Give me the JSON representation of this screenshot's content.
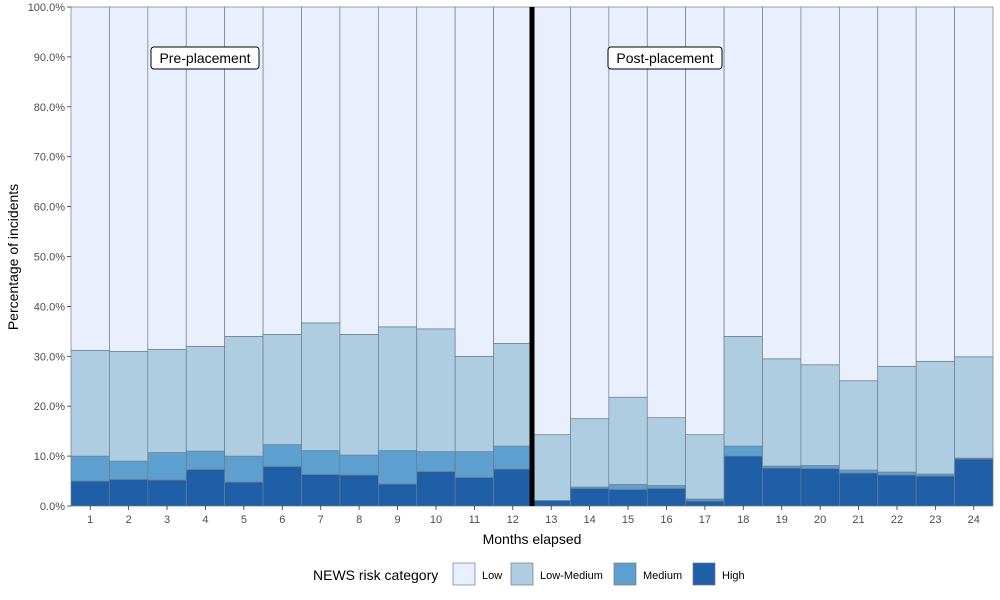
{
  "chart_data": {
    "type": "bar",
    "stacked": true,
    "percent": true,
    "xlabel": "Months elapsed",
    "ylabel": "Percentage of incidents",
    "ylim": [
      0,
      100
    ],
    "y_ticks": [
      "0.0%",
      "10.0%",
      "20.0%",
      "30.0%",
      "40.0%",
      "50.0%",
      "60.0%",
      "70.0%",
      "80.0%",
      "90.0%",
      "100.0%"
    ],
    "categories": [
      "1",
      "2",
      "3",
      "4",
      "5",
      "6",
      "7",
      "8",
      "9",
      "10",
      "11",
      "12",
      "13",
      "14",
      "15",
      "16",
      "17",
      "18",
      "19",
      "20",
      "21",
      "22",
      "23",
      "24"
    ],
    "series": [
      {
        "name": "High",
        "color": "#1f5fa8",
        "values": [
          5.0,
          5.3,
          5.2,
          7.3,
          4.8,
          7.9,
          6.3,
          6.2,
          4.4,
          6.9,
          5.7,
          7.4,
          1.1,
          3.5,
          3.3,
          3.5,
          1.0,
          10.0,
          7.6,
          7.5,
          6.6,
          6.2,
          6.0,
          9.4
        ]
      },
      {
        "name": "Medium",
        "color": "#5d9fce",
        "values": [
          5.0,
          3.7,
          5.5,
          3.7,
          5.2,
          4.4,
          4.8,
          4.0,
          6.7,
          4.0,
          5.2,
          4.6,
          0.0,
          0.3,
          1.0,
          0.6,
          0.4,
          2.0,
          0.4,
          0.6,
          0.6,
          0.6,
          0.4,
          0.2
        ]
      },
      {
        "name": "Low-Medium",
        "color": "#afcde1",
        "values": [
          21.2,
          22.0,
          20.7,
          21.0,
          24.0,
          22.1,
          25.6,
          24.2,
          24.8,
          24.6,
          19.1,
          20.6,
          13.2,
          13.7,
          17.5,
          13.6,
          12.9,
          22.0,
          21.5,
          20.2,
          17.9,
          21.2,
          22.6,
          20.3
        ]
      },
      {
        "name": "Low",
        "color": "#eaeffd",
        "values": [
          68.8,
          69.0,
          68.6,
          68.0,
          66.0,
          65.6,
          63.3,
          65.6,
          64.1,
          64.5,
          70.0,
          67.4,
          85.7,
          82.5,
          78.2,
          82.3,
          85.7,
          66.0,
          70.5,
          71.7,
          74.9,
          72.0,
          71.0,
          70.1
        ]
      }
    ],
    "legend": {
      "title": "NEWS risk category",
      "position": "bottom",
      "items": [
        "Low",
        "Low-Medium",
        "Medium",
        "High"
      ]
    },
    "annotations": [
      {
        "text": "Pre-placement"
      },
      {
        "text": "Post-placement"
      }
    ],
    "divider_between": [
      "12",
      "13"
    ],
    "grid": false
  }
}
